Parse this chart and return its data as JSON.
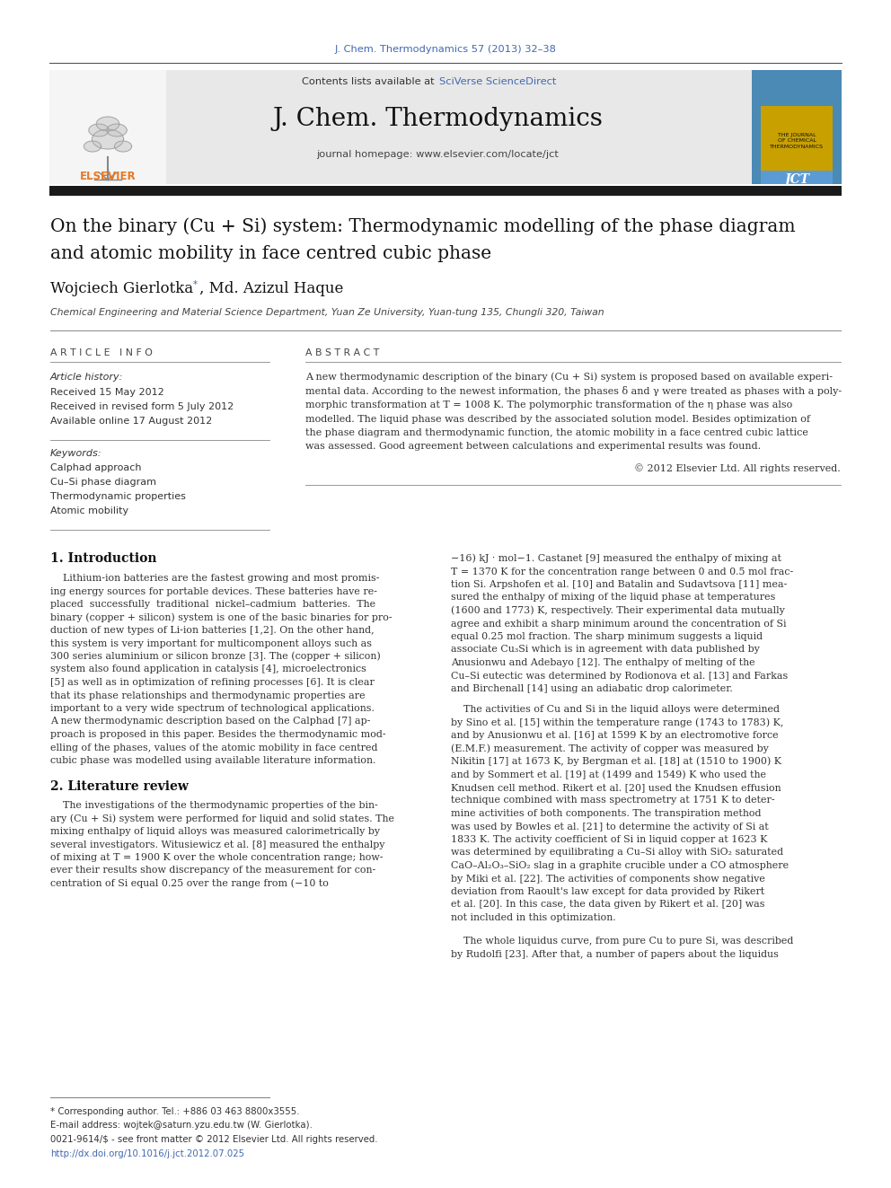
{
  "journal_ref": "J. Chem. Thermodynamics 57 (2013) 32–38",
  "journal_ref_color": "#4169b0",
  "contents_text": "Contents lists available at ",
  "sciverse_text": "SciVerse ScienceDirect",
  "sciverse_color": "#4169b0",
  "journal_name": "J. Chem. Thermodynamics",
  "homepage_text": "journal homepage: www.elsevier.com/locate/jct",
  "header_bg": "#e8e8e8",
  "title_line1": "On the binary (Cu + Si) system: Thermodynamic modelling of the phase diagram",
  "title_line2": "and atomic mobility in face centred cubic phase",
  "authors": "Wojciech Gierlotka ",
  "authors2": ", Md. Azizul Haque",
  "affiliation": "Chemical Engineering and Material Science Department, Yuan Ze University, Yuan-tung 135, Chungli 320, Taiwan",
  "article_info_header": "A R T I C L E   I N F O",
  "abstract_header": "A B S T R A C T",
  "article_history_label": "Article history:",
  "received1": "Received 15 May 2012",
  "received2": "Received in revised form 5 July 2012",
  "available": "Available online 17 August 2012",
  "keywords_label": "Keywords:",
  "keyword1": "Calphad approach",
  "keyword2": "Cu–Si phase diagram",
  "keyword3": "Thermodynamic properties",
  "keyword4": "Atomic mobility",
  "copyright_text": "© 2012 Elsevier Ltd. All rights reserved.",
  "section1_title": "1. Introduction",
  "section2_title": "2. Literature review",
  "footnote1": "* Corresponding author. Tel.: +886 03 463 8800x3555.",
  "footnote2": "E-mail address: wojtek@saturn.yzu.edu.tw (W. Gierlotka).",
  "footnote3": "0021-9614/$ - see front matter © 2012 Elsevier Ltd. All rights reserved.",
  "footnote4": "http://dx.doi.org/10.1016/j.jct.2012.07.025",
  "footnote4_color": "#4169b0",
  "bg_color": "#ffffff",
  "text_color": "#000000",
  "separator_color": "#888888",
  "black_bar_color": "#1a1a1a",
  "abstract_lines": [
    "A new thermodynamic description of the binary (Cu + Si) system is proposed based on available experi-",
    "mental data. According to the newest information, the phases δ and γ were treated as phases with a poly-",
    "morphic transformation at T = 1008 K. The polymorphic transformation of the η phase was also",
    "modelled. The liquid phase was described by the associated solution model. Besides optimization of",
    "the phase diagram and thermodynamic function, the atomic mobility in a face centred cubic lattice",
    "was assessed. Good agreement between calculations and experimental results was found."
  ],
  "intro_lines": [
    "    Lithium-ion batteries are the fastest growing and most promis-",
    "ing energy sources for portable devices. These batteries have re-",
    "placed  successfully  traditional  nickel–cadmium  batteries.  The",
    "binary (copper + silicon) system is one of the basic binaries for pro-",
    "duction of new types of Li-ion batteries [1,2]. On the other hand,",
    "this system is very important for multicomponent alloys such as",
    "300 series aluminium or silicon bronze [3]. The (copper + silicon)",
    "system also found application in catalysis [4], microelectronics",
    "[5] as well as in optimization of refining processes [6]. It is clear",
    "that its phase relationships and thermodynamic properties are",
    "important to a very wide spectrum of technological applications.",
    "A new thermodynamic description based on the Calphad [7] ap-",
    "proach is proposed in this paper. Besides the thermodynamic mod-",
    "elling of the phases, values of the atomic mobility in face centred",
    "cubic phase was modelled using available literature information."
  ],
  "lit_lines_left": [
    "    The investigations of the thermodynamic properties of the bin-",
    "ary (Cu + Si) system were performed for liquid and solid states. The",
    "mixing enthalpy of liquid alloys was measured calorimetrically by",
    "several investigators. Witusiewicz et al. [8] measured the enthalpy",
    "of mixing at T = 1900 K over the whole concentration range; how-",
    "ever their results show discrepancy of the measurement for con-",
    "centration of Si equal 0.25 over the range from (−10 to"
  ],
  "right_col1_lines": [
    "−16) kJ · mol−1. Castanet [9] measured the enthalpy of mixing at",
    "T = 1370 K for the concentration range between 0 and 0.5 mol frac-",
    "tion Si. Arpshofen et al. [10] and Batalin and Sudavtsova [11] mea-",
    "sured the enthalpy of mixing of the liquid phase at temperatures",
    "(1600 and 1773) K, respectively. Their experimental data mutually",
    "agree and exhibit a sharp minimum around the concentration of Si",
    "equal 0.25 mol fraction. The sharp minimum suggests a liquid",
    "associate Cu₃Si which is in agreement with data published by",
    "Anusionwu and Adebayo [12]. The enthalpy of melting of the",
    "Cu–Si eutectic was determined by Rodionova et al. [13] and Farkas",
    "and Birchenall [14] using an adiabatic drop calorimeter."
  ],
  "right_col2_lines": [
    "    The activities of Cu and Si in the liquid alloys were determined",
    "by Sino et al. [15] within the temperature range (1743 to 1783) K,",
    "and by Anusionwu et al. [16] at 1599 K by an electromotive force",
    "(E.M.F.) measurement. The activity of copper was measured by",
    "Nikitin [17] at 1673 K, by Bergman et al. [18] at (1510 to 1900) K",
    "and by Sommert et al. [19] at (1499 and 1549) K who used the",
    "Knudsen cell method. Rikert et al. [20] used the Knudsen effusion",
    "technique combined with mass spectrometry at 1751 K to deter-",
    "mine activities of both components. The transpiration method",
    "was used by Bowles et al. [21] to determine the activity of Si at",
    "1833 K. The activity coefficient of Si in liquid copper at 1623 K",
    "was determined by equilibrating a Cu–Si alloy with SiO₂ saturated",
    "CaO–Al₂O₃–SiO₂ slag in a graphite crucible under a CO atmosphere",
    "by Miki et al. [22]. The activities of components show negative",
    "deviation from Raoult's law except for data provided by Rikert",
    "et al. [20]. In this case, the data given by Rikert et al. [20] was",
    "not included in this optimization."
  ],
  "right_col3_lines": [
    "    The whole liquidus curve, from pure Cu to pure Si, was described",
    "by Rudolfi [23]. After that, a number of papers about the liquidus"
  ]
}
